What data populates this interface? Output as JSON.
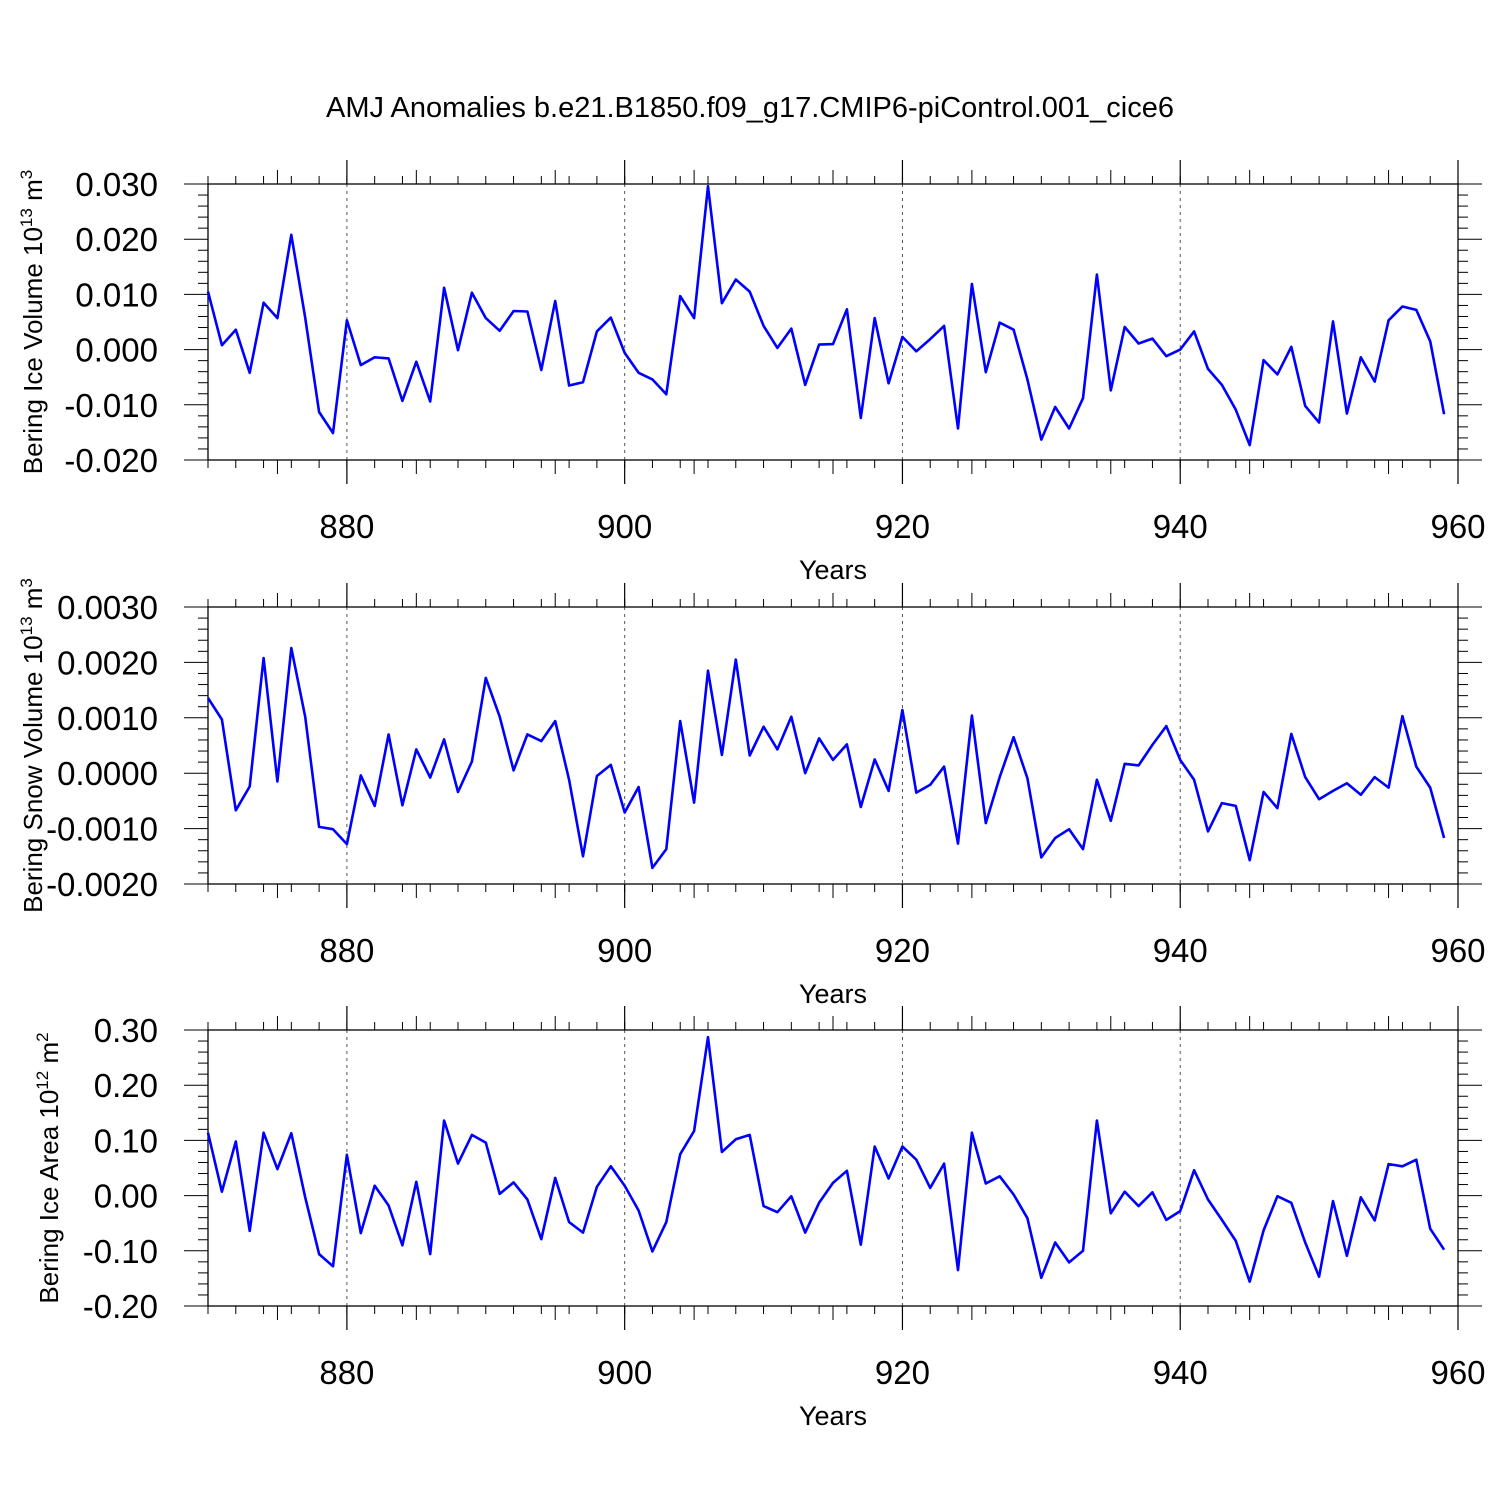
{
  "title": "AMJ Anomalies b.e21.B1850.f09_g17.CMIP6-piControl.001_cice6",
  "chart_data": [
    {
      "type": "line",
      "ylabel": {
        "text": "Bering Ice Volume 10",
        "exp": "13",
        "unit": " m",
        "unit_exp": "3"
      },
      "xlabel": "Years",
      "xlim": [
        870,
        960
      ],
      "ylim": [
        -0.02,
        0.03
      ],
      "xticks": [
        880,
        900,
        920,
        940,
        960
      ],
      "xtick_labels": [
        "880",
        "900",
        "920",
        "940",
        "960"
      ],
      "yticks": [
        -0.02,
        -0.01,
        0.0,
        0.01,
        0.02,
        0.03
      ],
      "ytick_labels": [
        "-0.020",
        "-0.010",
        "0.000",
        "0.010",
        "0.020",
        "0.030"
      ],
      "grid": "dashed vertical at major x ticks",
      "color": "#0000ff",
      "x_start": 870,
      "values": [
        0.0105,
        0.0008,
        0.0036,
        -0.0042,
        0.0085,
        0.0057,
        0.0208,
        0.0058,
        -0.0113,
        -0.0151,
        0.0053,
        -0.0028,
        -0.0014,
        -0.0016,
        -0.0093,
        -0.0022,
        -0.0094,
        0.0112,
        -0.0001,
        0.0103,
        0.0057,
        0.0034,
        0.007,
        0.0069,
        -0.0037,
        0.0088,
        -0.0065,
        -0.0059,
        0.0033,
        0.0058,
        -0.0006,
        -0.0042,
        -0.0054,
        -0.0081,
        0.0097,
        0.0057,
        0.0296,
        0.0084,
        0.0127,
        0.0105,
        0.0043,
        0.0003,
        0.0038,
        -0.0064,
        0.0009,
        0.001,
        0.0073,
        -0.0124,
        0.0057,
        -0.0061,
        0.0023,
        -0.0003,
        0.0019,
        0.0043,
        -0.0143,
        0.0119,
        -0.0041,
        0.0049,
        0.0036,
        -0.0054,
        -0.0163,
        -0.0104,
        -0.0143,
        -0.0088,
        0.0136,
        -0.0074,
        0.0041,
        0.0011,
        0.002,
        -0.0012,
        0.0,
        0.0033,
        -0.0035,
        -0.0064,
        -0.0109,
        -0.0173,
        -0.0019,
        -0.0045,
        0.0005,
        -0.0102,
        -0.0132,
        0.0051,
        -0.0116,
        -0.0014,
        -0.0058,
        0.0053,
        0.0078,
        0.0072,
        0.0015,
        -0.0117
      ]
    },
    {
      "type": "line",
      "ylabel": {
        "text": "Bering Snow Volume 10",
        "exp": "13",
        "unit": " m",
        "unit_exp": "3"
      },
      "xlabel": "Years",
      "xlim": [
        870,
        960
      ],
      "ylim": [
        -0.002,
        0.003
      ],
      "xticks": [
        880,
        900,
        920,
        940,
        960
      ],
      "xtick_labels": [
        "880",
        "900",
        "920",
        "940",
        "960"
      ],
      "yticks": [
        -0.002,
        -0.001,
        0.0,
        0.001,
        0.002,
        0.003
      ],
      "ytick_labels": [
        "-0.0020",
        "-0.0010",
        "0.0000",
        "0.0010",
        "0.0020",
        "0.0030"
      ],
      "grid": "dashed vertical at major x ticks",
      "color": "#0000ff",
      "x_start": 870,
      "values": [
        0.00136,
        0.00097,
        -0.00067,
        -0.00024,
        0.00208,
        -0.00015,
        0.00226,
        0.00102,
        -0.00097,
        -0.00101,
        -0.00128,
        -4e-05,
        -0.00059,
        0.0007,
        -0.00058,
        0.00043,
        -8e-05,
        0.00061,
        -0.00034,
        0.00021,
        0.00172,
        0.00102,
        5e-05,
        0.0007,
        0.00058,
        0.00094,
        -0.00012,
        -0.0015,
        -5e-05,
        0.00015,
        -0.00071,
        -0.00025,
        -0.00171,
        -0.00137,
        0.00094,
        -0.00053,
        0.00185,
        0.00033,
        0.00205,
        0.00032,
        0.00084,
        0.00043,
        0.00102,
        0.0,
        0.00063,
        0.00024,
        0.00052,
        -0.00061,
        0.00025,
        -0.00032,
        0.00114,
        -0.00035,
        -0.00021,
        0.00012,
        -0.00127,
        0.00104,
        -0.0009,
        -7e-05,
        0.00065,
        -9e-05,
        -0.00152,
        -0.00117,
        -0.00101,
        -0.00137,
        -0.00012,
        -0.00086,
        0.00017,
        0.00014,
        0.00051,
        0.00085,
        0.00024,
        -0.00012,
        -0.00105,
        -0.00054,
        -0.00059,
        -0.00157,
        -0.00034,
        -0.00063,
        0.00071,
        -7e-05,
        -0.00047,
        -0.00032,
        -0.00018,
        -0.00039,
        -7e-05,
        -0.00026,
        0.00103,
        0.00012,
        -0.00026,
        -0.00117
      ]
    },
    {
      "type": "line",
      "ylabel": {
        "text": "Bering Ice Area 10",
        "exp": "12",
        "unit": " m",
        "unit_exp": "2"
      },
      "xlabel": "Years",
      "xlim": [
        870,
        960
      ],
      "ylim": [
        -0.2,
        0.3
      ],
      "xticks": [
        880,
        900,
        920,
        940,
        960
      ],
      "xtick_labels": [
        "880",
        "900",
        "920",
        "940",
        "960"
      ],
      "yticks": [
        -0.2,
        -0.1,
        0.0,
        0.1,
        0.2,
        0.3
      ],
      "ytick_labels": [
        "-0.20",
        "-0.10",
        "0.00",
        "0.10",
        "0.20",
        "0.30"
      ],
      "grid": "dashed vertical at major x ticks",
      "color": "#0000ff",
      "x_start": 870,
      "values": [
        0.114,
        0.007,
        0.098,
        -0.064,
        0.114,
        0.048,
        0.113,
        -0.003,
        -0.106,
        -0.128,
        0.074,
        -0.068,
        0.018,
        -0.018,
        -0.09,
        0.025,
        -0.106,
        0.136,
        0.058,
        0.11,
        0.096,
        0.003,
        0.024,
        -0.007,
        -0.079,
        0.032,
        -0.048,
        -0.067,
        0.016,
        0.053,
        0.018,
        -0.027,
        -0.101,
        -0.048,
        0.075,
        0.117,
        0.287,
        0.079,
        0.102,
        0.11,
        -0.019,
        -0.03,
        -0.001,
        -0.067,
        -0.013,
        0.023,
        0.045,
        -0.089,
        0.089,
        0.031,
        0.089,
        0.065,
        0.014,
        0.058,
        -0.135,
        0.114,
        0.022,
        0.035,
        0.002,
        -0.041,
        -0.149,
        -0.085,
        -0.121,
        -0.1,
        0.136,
        -0.032,
        0.007,
        -0.019,
        0.006,
        -0.044,
        -0.028,
        0.046,
        -0.007,
        -0.044,
        -0.082,
        -0.156,
        -0.063,
        -0.001,
        -0.013,
        -0.085,
        -0.147,
        -0.01,
        -0.109,
        -0.003,
        -0.045,
        0.057,
        0.053,
        0.065,
        -0.06,
        -0.098
      ]
    }
  ]
}
